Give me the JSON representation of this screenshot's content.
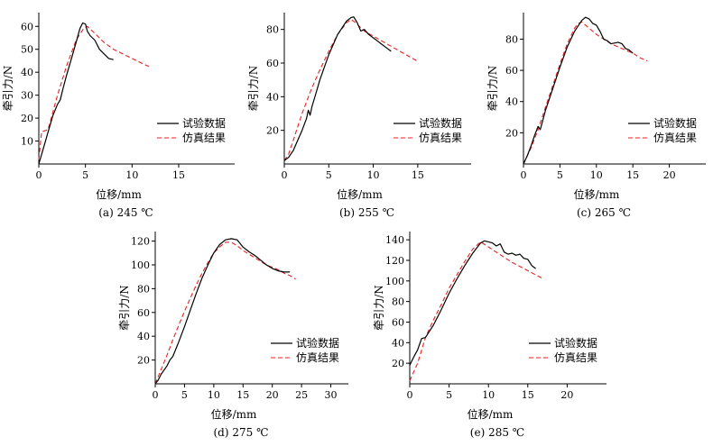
{
  "legend": {
    "test": "试验数据",
    "sim": "仿真结果"
  },
  "colors": {
    "test": "#000000",
    "sim": "#e8201f"
  },
  "chart_data": [
    {
      "type": "line",
      "caption": "(a) 245 ℃",
      "xlabel": "位移/mm",
      "ylabel": "牵引力/N",
      "xlim": [
        0,
        21
      ],
      "ylim": [
        0,
        66
      ],
      "xticks": [
        0,
        5,
        10,
        15
      ],
      "yticks": [
        10,
        20,
        30,
        40,
        50,
        60
      ],
      "legend_position": "lower-right",
      "series": [
        {
          "key": "test",
          "name": "试验数据",
          "x": [
            0,
            0.5,
            1,
            1.5,
            2,
            2.3,
            2.6,
            3,
            3.5,
            4,
            4.4,
            4.7,
            5,
            5.2,
            5.5,
            6,
            6.5,
            7,
            7.5,
            8
          ],
          "y": [
            0,
            7,
            14,
            21,
            26,
            28,
            33,
            39,
            46,
            53,
            59,
            61.5,
            61,
            58,
            56,
            54,
            50,
            48,
            46,
            45.5
          ]
        },
        {
          "key": "sim",
          "name": "仿真结果",
          "x": [
            0,
            0.3,
            1,
            2,
            3,
            4,
            4.8,
            5.2,
            6,
            7,
            8,
            9,
            10,
            11,
            11.8
          ],
          "y": [
            2,
            14,
            15,
            30,
            43,
            54,
            59,
            60,
            57,
            53,
            50,
            48,
            46,
            44,
            42.5
          ]
        }
      ]
    },
    {
      "type": "line",
      "caption": "(b) 255 ℃",
      "xlabel": "位移/mm",
      "ylabel": "牵引力/N",
      "xlim": [
        0,
        21
      ],
      "ylim": [
        0,
        90
      ],
      "xticks": [
        0,
        5,
        10,
        15
      ],
      "yticks": [
        20,
        40,
        60,
        80
      ],
      "legend_position": "lower-right",
      "series": [
        {
          "key": "test",
          "name": "试验数据",
          "x": [
            0,
            0.5,
            1,
            1.5,
            2,
            2.5,
            2.7,
            2.9,
            3.1,
            3.5,
            4,
            5,
            6,
            7,
            7.5,
            7.8,
            8.2,
            8.6,
            9,
            9.5,
            10,
            10.5,
            11,
            11.5,
            12
          ],
          "y": [
            2,
            4,
            8,
            14,
            20,
            27,
            32,
            29,
            34,
            41,
            50,
            65,
            77,
            85,
            87,
            87.5,
            84,
            79,
            80,
            77,
            75,
            73,
            71,
            69,
            67
          ]
        },
        {
          "key": "sim",
          "name": "仿真结果",
          "x": [
            0,
            0.5,
            1,
            2,
            3,
            4,
            5,
            6,
            7,
            7.5,
            8,
            9,
            10,
            11,
            12,
            13,
            14,
            15
          ],
          "y": [
            2,
            6,
            14,
            30,
            44,
            56,
            67,
            77,
            84,
            86,
            84,
            79,
            76,
            73,
            70,
            67,
            64,
            61
          ]
        }
      ]
    },
    {
      "type": "line",
      "caption": "(c) 265 ℃",
      "xlabel": "位移/mm",
      "ylabel": "牵引力/N",
      "xlim": [
        0,
        25
      ],
      "ylim": [
        0,
        97
      ],
      "xticks": [
        0,
        5,
        10,
        15,
        20
      ],
      "yticks": [
        20,
        40,
        60,
        80
      ],
      "legend_position": "lower-right",
      "series": [
        {
          "key": "test",
          "name": "试验数据",
          "x": [
            0,
            0.5,
            1,
            1.5,
            2,
            2.3,
            2.6,
            3,
            4,
            5,
            6,
            7,
            8,
            8.5,
            9,
            9.5,
            10,
            10.5,
            11,
            11.5,
            12,
            13,
            13.5,
            14,
            14.5,
            15
          ],
          "y": [
            0,
            5,
            11,
            18,
            24,
            22,
            27,
            34,
            48,
            62,
            75,
            85,
            92,
            94,
            93,
            90,
            89,
            85,
            80,
            79,
            77,
            78,
            77,
            74,
            73,
            71
          ]
        },
        {
          "key": "sim",
          "name": "仿真结果",
          "x": [
            0,
            1,
            2,
            3,
            4,
            5,
            6,
            7,
            7.5,
            8,
            9,
            10,
            11,
            12,
            13,
            14,
            15,
            16,
            17
          ],
          "y": [
            0,
            10,
            22,
            36,
            50,
            64,
            77,
            87,
            90,
            91,
            87,
            83,
            80,
            77,
            75,
            73,
            71,
            68,
            66
          ]
        }
      ]
    },
    {
      "type": "line",
      "caption": "(d) 275 ℃",
      "xlabel": "位移/mm",
      "ylabel": "牵引力/N",
      "xlim": [
        0,
        33
      ],
      "ylim": [
        0,
        128
      ],
      "xticks": [
        0,
        5,
        10,
        15,
        20,
        25,
        30
      ],
      "yticks": [
        20,
        40,
        60,
        80,
        100,
        120
      ],
      "legend_position": "lower-right",
      "series": [
        {
          "key": "test",
          "name": "试验数据",
          "x": [
            0,
            0.5,
            1,
            2,
            2.5,
            3,
            4,
            5,
            6,
            7,
            8,
            9,
            10,
            11,
            12,
            13,
            14,
            15,
            16,
            17,
            18,
            19,
            20,
            21,
            22,
            23
          ],
          "y": [
            0,
            3,
            8,
            15,
            20,
            23,
            35,
            48,
            62,
            76,
            89,
            100,
            110,
            117,
            121,
            122,
            121,
            115,
            111,
            108,
            104,
            100,
            97,
            95,
            94,
            94
          ]
        },
        {
          "key": "sim",
          "name": "仿真结果",
          "x": [
            0,
            1,
            2,
            3,
            4,
            5,
            6,
            7,
            8,
            9,
            10,
            11,
            12,
            13,
            14,
            15,
            16,
            17,
            18,
            19,
            20,
            21,
            22,
            23,
            24
          ],
          "y": [
            0,
            12,
            24,
            37,
            49,
            61,
            72,
            83,
            93,
            102,
            110,
            115,
            119,
            119,
            116,
            112,
            109,
            106,
            103,
            100,
            98,
            96,
            93,
            91,
            88
          ]
        }
      ]
    },
    {
      "type": "line",
      "caption": "(e) 285 ℃",
      "xlabel": "位移/mm",
      "ylabel": "牵引力/N",
      "xlim": [
        0,
        25
      ],
      "ylim": [
        0,
        148
      ],
      "xticks": [
        0,
        5,
        10,
        15,
        20
      ],
      "yticks": [
        20,
        40,
        60,
        80,
        100,
        120,
        140
      ],
      "legend_position": "lower-right",
      "series": [
        {
          "key": "test",
          "name": "试验数据",
          "x": [
            0,
            0.5,
            1,
            1.5,
            2,
            3,
            4,
            5,
            6,
            7,
            8,
            9,
            9.5,
            10,
            10.5,
            11,
            11.5,
            12,
            12.5,
            13,
            13.5,
            14,
            14.5,
            15,
            15.5,
            16
          ],
          "y": [
            18,
            26,
            33,
            44,
            45,
            57,
            72,
            88,
            102,
            115,
            127,
            137,
            139,
            138,
            137,
            134,
            136,
            128,
            126,
            127,
            125,
            126,
            122,
            121,
            115,
            112
          ]
        },
        {
          "key": "sim",
          "name": "仿真结果",
          "x": [
            0,
            1,
            2,
            3,
            4,
            5,
            6,
            7,
            8,
            9,
            10,
            11,
            12,
            13,
            14,
            15,
            16,
            17
          ],
          "y": [
            3,
            20,
            45,
            62,
            77,
            93,
            106,
            119,
            131,
            138,
            133,
            128,
            123,
            118,
            114,
            110,
            106,
            102
          ]
        }
      ]
    }
  ]
}
